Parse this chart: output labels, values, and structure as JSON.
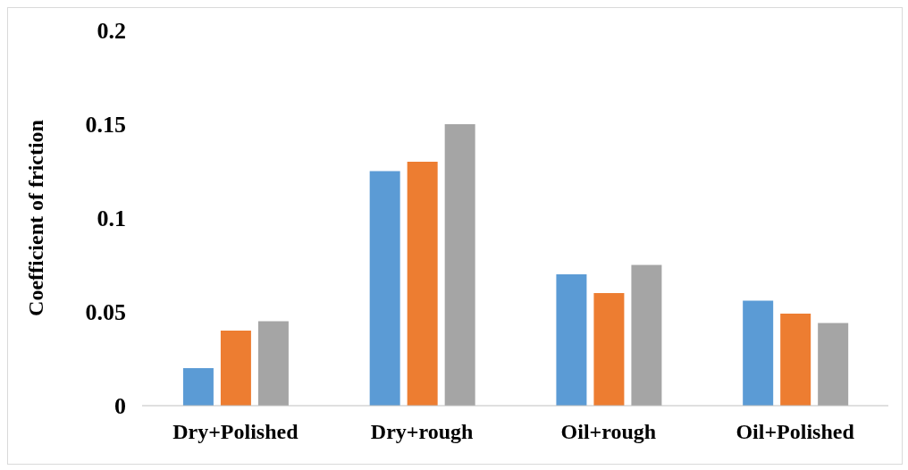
{
  "chart_data": {
    "type": "bar",
    "ylabel": "Coefficient of friction",
    "categories": [
      "Dry+Polished",
      "Dry+rough",
      "Oil+rough",
      "Oil+Polished"
    ],
    "series": [
      {
        "color": "#5b9bd5",
        "values": [
          0.02,
          0.125,
          0.07,
          0.056
        ]
      },
      {
        "color": "#ed7d31",
        "values": [
          0.04,
          0.13,
          0.06,
          0.049
        ]
      },
      {
        "color": "#a5a5a5",
        "values": [
          0.045,
          0.15,
          0.075,
          0.044
        ]
      }
    ],
    "ylim": [
      0,
      0.2
    ],
    "yticks": [
      0,
      0.05,
      0.1,
      0.15,
      0.2
    ],
    "grid": false,
    "legend": false
  }
}
